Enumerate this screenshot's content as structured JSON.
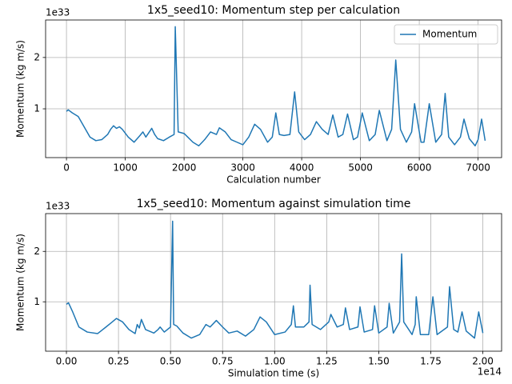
{
  "chart_data": [
    {
      "type": "line",
      "title": "1x5_seed10: Momentum step per calculation",
      "xlabel": "Calculation number",
      "ylabel": "Momentum (kg m/s)",
      "y_offset_label": "1e33",
      "xlim": [
        -355,
        7400
      ],
      "xticks": [
        0,
        1000,
        2000,
        3000,
        4000,
        5000,
        6000,
        7000
      ],
      "ylim": [
        0.05,
        2.73
      ],
      "yticks": [
        1,
        2
      ],
      "grid": true,
      "legend": "upper right",
      "x": [
        0,
        30,
        100,
        200,
        300,
        400,
        500,
        600,
        700,
        750,
        800,
        850,
        900,
        950,
        1050,
        1150,
        1250,
        1300,
        1350,
        1450,
        1500,
        1550,
        1650,
        1750,
        1830,
        1850,
        1900,
        2000,
        2150,
        2250,
        2350,
        2450,
        2550,
        2600,
        2700,
        2800,
        2900,
        3000,
        3100,
        3200,
        3300,
        3420,
        3500,
        3560,
        3620,
        3700,
        3800,
        3880,
        3950,
        4050,
        4150,
        4250,
        4350,
        4450,
        4530,
        4620,
        4700,
        4780,
        4880,
        4950,
        5030,
        5150,
        5250,
        5320,
        5450,
        5530,
        5600,
        5680,
        5780,
        5870,
        5920,
        6030,
        6080,
        6170,
        6280,
        6380,
        6440,
        6500,
        6600,
        6700,
        6760,
        6850,
        6950,
        7000,
        7060,
        7120
      ],
      "series": [
        {
          "name": "Momentum",
          "color": "#1f77b4",
          "values": [
            0.95,
            0.98,
            0.92,
            0.85,
            0.65,
            0.45,
            0.38,
            0.4,
            0.5,
            0.6,
            0.67,
            0.62,
            0.65,
            0.6,
            0.45,
            0.35,
            0.48,
            0.55,
            0.45,
            0.62,
            0.5,
            0.42,
            0.38,
            0.45,
            0.5,
            2.6,
            0.55,
            0.52,
            0.35,
            0.28,
            0.4,
            0.55,
            0.5,
            0.63,
            0.55,
            0.4,
            0.35,
            0.3,
            0.45,
            0.7,
            0.6,
            0.35,
            0.45,
            0.92,
            0.5,
            0.48,
            0.5,
            1.33,
            0.55,
            0.4,
            0.5,
            0.75,
            0.6,
            0.5,
            0.88,
            0.45,
            0.5,
            0.9,
            0.4,
            0.45,
            0.92,
            0.38,
            0.5,
            0.97,
            0.38,
            0.6,
            1.95,
            0.6,
            0.35,
            0.55,
            1.1,
            0.35,
            0.35,
            1.1,
            0.35,
            0.5,
            1.3,
            0.45,
            0.3,
            0.45,
            0.8,
            0.42,
            0.28,
            0.4,
            0.8,
            0.38
          ]
        }
      ]
    },
    {
      "type": "line",
      "title": "1x5_seed10: Momentum against simulation time",
      "xlabel": "Simulation time (s)",
      "ylabel": "Momentum (kg m/s)",
      "y_offset_label": "1e33",
      "x_offset_label": "1e14",
      "xlim": [
        -0.1,
        2.09
      ],
      "xticks": [
        {
          "value": 0,
          "label": "0.00"
        },
        0.25,
        {
          "value": 0.5,
          "label": "0.50"
        },
        0.75,
        {
          "value": 1,
          "label": "1.00"
        },
        1.25,
        {
          "value": 1.5,
          "label": "1.50"
        },
        1.75,
        {
          "value": 2,
          "label": "2.00"
        }
      ],
      "ylim": [
        0.02,
        2.75
      ],
      "yticks": [
        1,
        2
      ],
      "grid": true,
      "color": "#1f77b4",
      "x": [
        0,
        0.01,
        0.03,
        0.06,
        0.1,
        0.15,
        0.19,
        0.22,
        0.24,
        0.27,
        0.3,
        0.33,
        0.34,
        0.35,
        0.36,
        0.38,
        0.42,
        0.44,
        0.45,
        0.47,
        0.5,
        0.51,
        0.515,
        0.53,
        0.56,
        0.6,
        0.64,
        0.67,
        0.69,
        0.72,
        0.75,
        0.78,
        0.82,
        0.86,
        0.9,
        0.93,
        0.96,
        1.0,
        1.05,
        1.08,
        1.09,
        1.1,
        1.14,
        1.165,
        1.17,
        1.18,
        1.22,
        1.26,
        1.27,
        1.3,
        1.33,
        1.34,
        1.36,
        1.4,
        1.41,
        1.43,
        1.47,
        1.48,
        1.5,
        1.54,
        1.55,
        1.57,
        1.6,
        1.61,
        1.62,
        1.66,
        1.675,
        1.68,
        1.7,
        1.74,
        1.76,
        1.78,
        1.83,
        1.84,
        1.86,
        1.88,
        1.9,
        1.92,
        1.96,
        1.98,
        2.0
      ],
      "values": [
        0.95,
        0.98,
        0.8,
        0.5,
        0.4,
        0.37,
        0.5,
        0.6,
        0.67,
        0.6,
        0.45,
        0.37,
        0.55,
        0.48,
        0.65,
        0.45,
        0.38,
        0.45,
        0.5,
        0.4,
        0.5,
        2.6,
        0.55,
        0.52,
        0.38,
        0.28,
        0.35,
        0.55,
        0.5,
        0.63,
        0.5,
        0.38,
        0.42,
        0.32,
        0.45,
        0.7,
        0.6,
        0.35,
        0.4,
        0.55,
        0.92,
        0.5,
        0.5,
        0.6,
        1.33,
        0.55,
        0.45,
        0.6,
        0.75,
        0.5,
        0.55,
        0.88,
        0.45,
        0.5,
        0.9,
        0.4,
        0.45,
        0.92,
        0.38,
        0.5,
        0.97,
        0.38,
        0.6,
        1.95,
        0.6,
        0.35,
        0.55,
        1.1,
        0.35,
        0.35,
        1.1,
        0.35,
        0.5,
        1.3,
        0.45,
        0.4,
        0.8,
        0.42,
        0.28,
        0.8,
        0.38
      ]
    }
  ]
}
